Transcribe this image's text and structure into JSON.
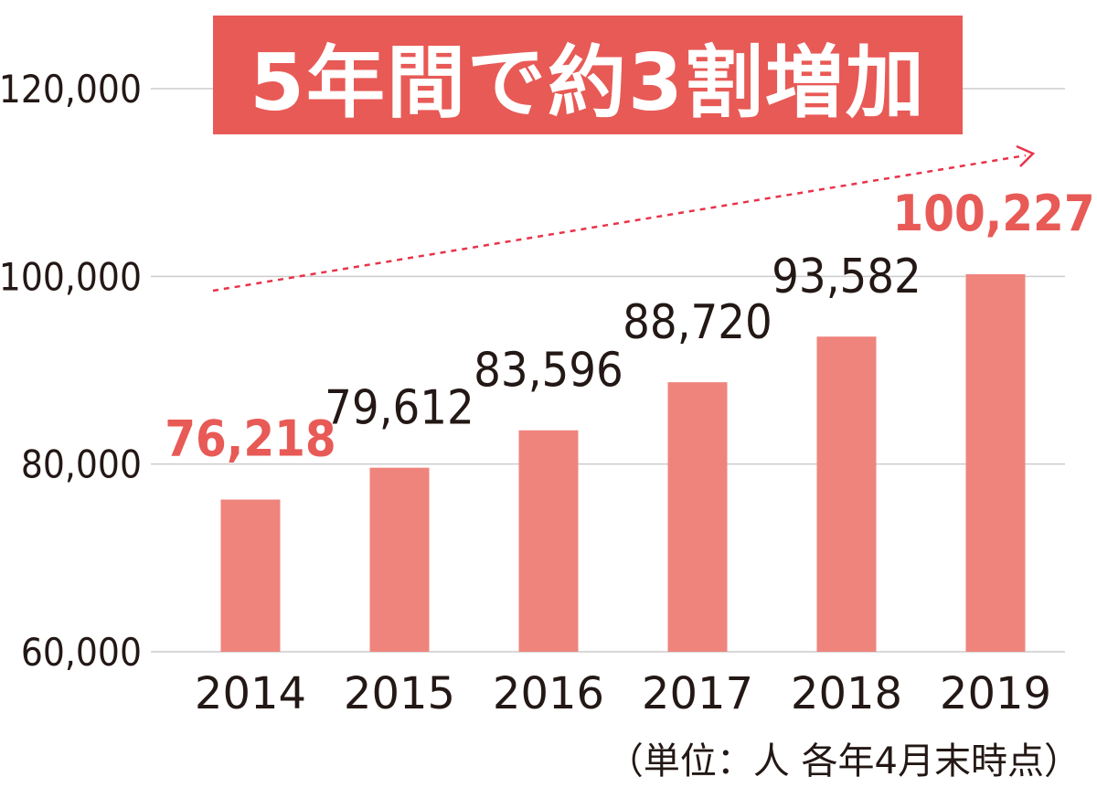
{
  "chart_data": {
    "type": "bar",
    "title": "5年間で約3割増加",
    "categories": [
      "2014",
      "2015",
      "2016",
      "2017",
      "2018",
      "2019"
    ],
    "values": [
      76218,
      79612,
      83596,
      88720,
      93582,
      100227
    ],
    "value_labels": [
      "76,218",
      "79,612",
      "83,596",
      "88,720",
      "93,582",
      "100,227"
    ],
    "highlighted": [
      "2014",
      "2019"
    ],
    "ylim": [
      60000,
      120000
    ],
    "yticks": [
      60000,
      80000,
      100000,
      120000
    ],
    "ytick_labels": [
      "60,000",
      "80,000",
      "100,000",
      "120,000"
    ],
    "grid": true,
    "trend_arrow": true,
    "note": "（単位：人  各年4月末時点）"
  },
  "colors": {
    "bar": "#ef847d",
    "highlight_label": "#e85a56",
    "label": "#231815",
    "grid": "#cccccc",
    "title_bg": "#e85a56",
    "title_text": "#ffffff",
    "trend": "#e8334a"
  }
}
